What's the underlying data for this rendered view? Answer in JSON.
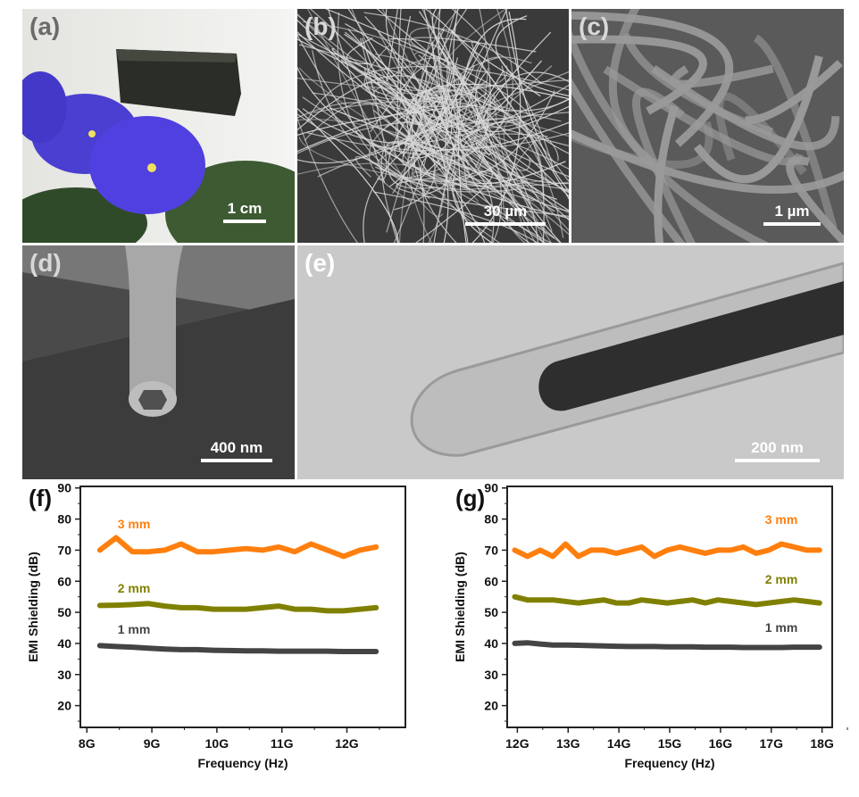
{
  "panels": {
    "a": {
      "label": "(a)",
      "scale": "1 cm"
    },
    "b": {
      "label": "(b)",
      "scale": "30 µm"
    },
    "c": {
      "label": "(c)",
      "scale": "1 µm"
    },
    "d": {
      "label": "(d)",
      "scale": "400 nm"
    },
    "e": {
      "label": "(e)",
      "scale": "200 nm"
    }
  },
  "colors": {
    "3mm": "#ff7f0e",
    "2mm": "#808000",
    "1mm": "#444444"
  },
  "chart_data": [
    {
      "type": "line",
      "panel_label": "(f)",
      "xlabel": "Frequency (Hz)",
      "ylabel": "EMI Shielding (dB)",
      "xlim": [
        7.9,
        12.9
      ],
      "ylim": [
        13,
        90.5
      ],
      "xticks": [
        8,
        9,
        10,
        11,
        12
      ],
      "xtick_labels": [
        "8G",
        "9G",
        "10G",
        "11G",
        "12G"
      ],
      "yticks": [
        20,
        30,
        40,
        50,
        60,
        70,
        80,
        90
      ],
      "ytick_labels": [
        "20",
        "30",
        "40",
        "50",
        "60",
        "70",
        "80",
        "90"
      ],
      "x_start": 8.2,
      "x_step": 0.25,
      "series": [
        {
          "name": "3 mm",
          "color": "#ff7f0e",
          "values": [
            70,
            74,
            69.5,
            69.5,
            70,
            72,
            69.5,
            69.5,
            70,
            70.5,
            70,
            71,
            69.5,
            72,
            70,
            68,
            70,
            71
          ]
        },
        {
          "name": "2 mm",
          "color": "#808000",
          "values": [
            52.2,
            52.3,
            52.5,
            52.8,
            52,
            51.5,
            51.5,
            51,
            51,
            51,
            51.5,
            52,
            51,
            51,
            50.5,
            50.5,
            51,
            51.5
          ]
        },
        {
          "name": "1 mm",
          "color": "#444444",
          "values": [
            39.3,
            39,
            38.8,
            38.5,
            38.2,
            38,
            38,
            37.8,
            37.7,
            37.6,
            37.6,
            37.5,
            37.5,
            37.5,
            37.5,
            37.4,
            37.4,
            37.4
          ]
        }
      ]
    },
    {
      "type": "line",
      "panel_label": "(g)",
      "xlabel": "Frequency (Hz)",
      "ylabel": "EMI Shielding (dB)",
      "xlim": [
        11.8,
        18.2
      ],
      "ylim": [
        13,
        90.5
      ],
      "xticks": [
        12,
        13,
        14,
        15,
        16,
        17,
        18
      ],
      "xtick_labels": [
        "12G",
        "13G",
        "14G",
        "15G",
        "16G",
        "17G",
        "18G"
      ],
      "yticks": [
        20,
        30,
        40,
        50,
        60,
        70,
        80,
        90
      ],
      "ytick_labels": [
        "20",
        "30",
        "40",
        "50",
        "60",
        "70",
        "80",
        "90"
      ],
      "x_start": 11.95,
      "x_step": 0.25,
      "series": [
        {
          "name": "3 mm",
          "color": "#ff7f0e",
          "values": [
            70,
            68,
            70,
            68,
            72,
            68,
            70,
            70,
            69,
            70,
            71,
            68,
            70,
            71,
            70,
            69,
            70,
            70,
            71,
            69,
            70,
            72,
            71,
            70,
            70
          ]
        },
        {
          "name": "2 mm",
          "color": "#808000",
          "values": [
            55,
            54,
            54,
            54,
            53.5,
            53,
            53.5,
            54,
            53,
            53,
            54,
            53.5,
            53,
            53.5,
            54,
            53,
            54,
            53.5,
            53,
            52.5,
            53,
            53.5,
            54,
            53.5,
            53
          ]
        },
        {
          "name": "1 mm",
          "color": "#444444",
          "values": [
            40,
            40.2,
            39.8,
            39.5,
            39.5,
            39.4,
            39.3,
            39.2,
            39.1,
            39,
            39,
            39,
            38.9,
            38.9,
            38.9,
            38.8,
            38.8,
            38.8,
            38.7,
            38.7,
            38.7,
            38.7,
            38.8,
            38.8,
            38.8
          ]
        }
      ]
    }
  ]
}
